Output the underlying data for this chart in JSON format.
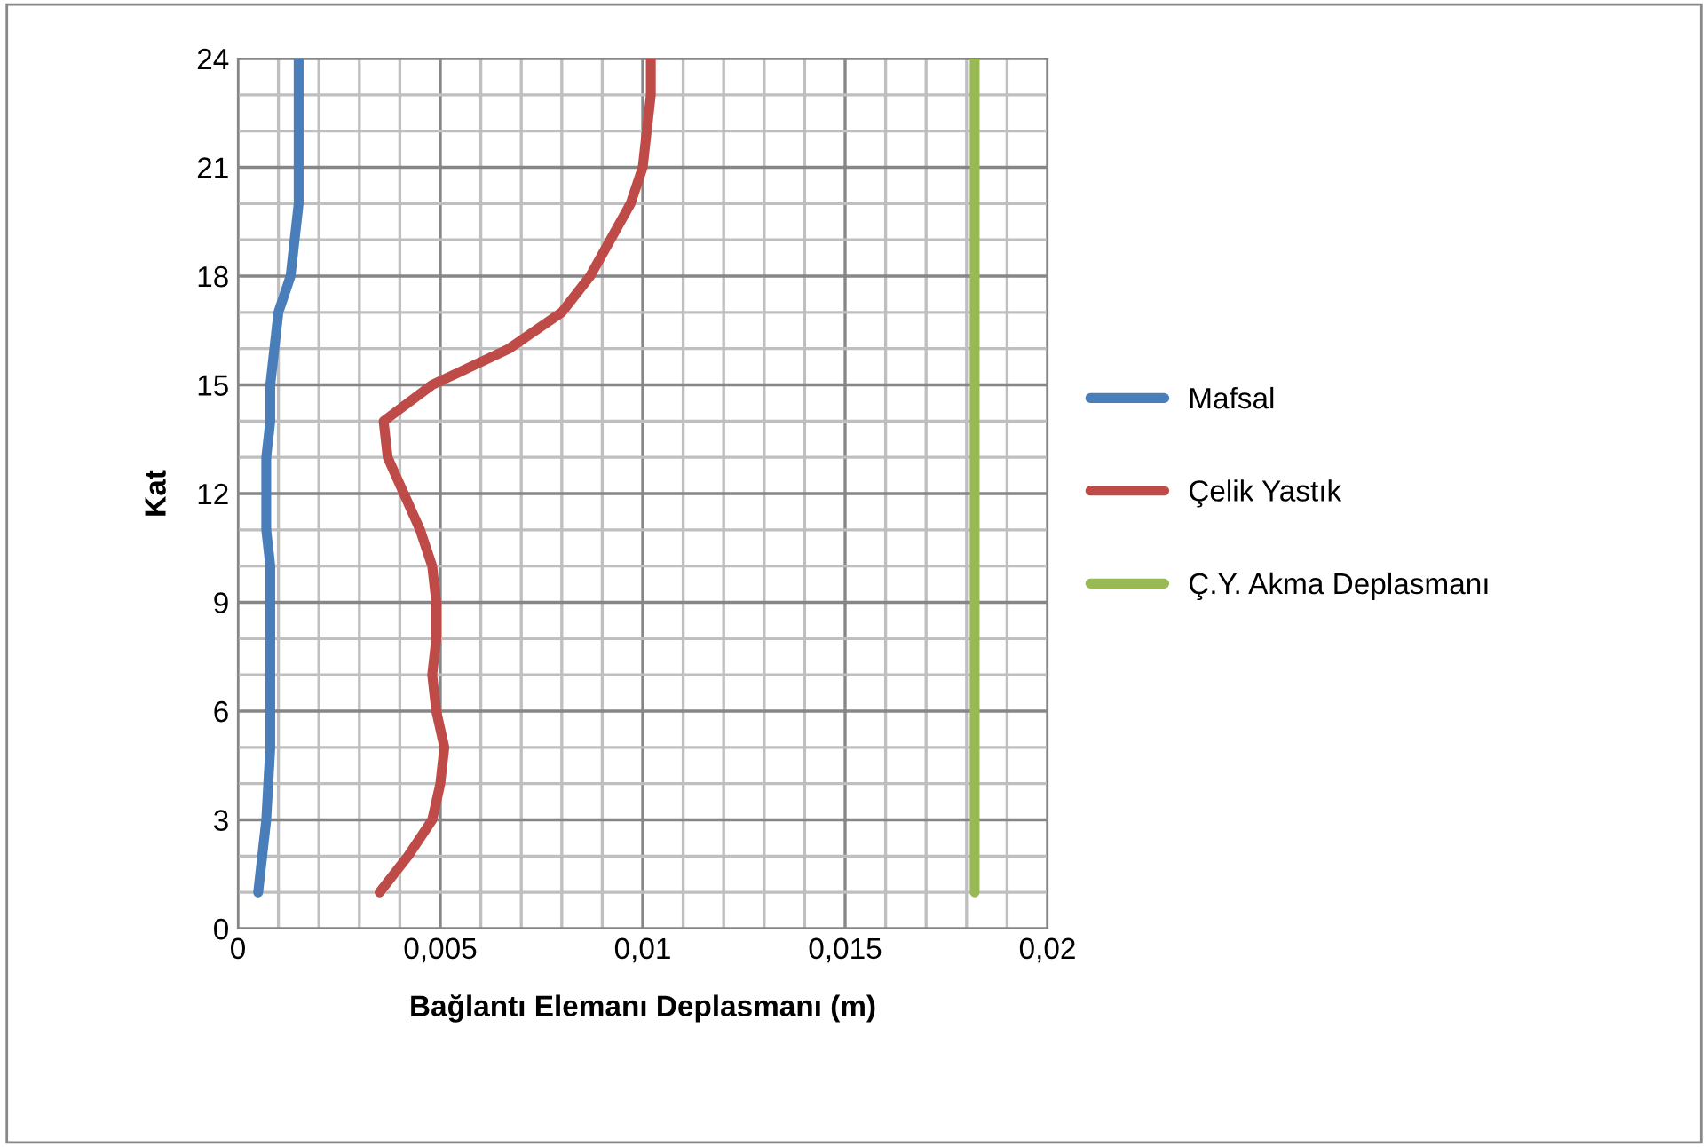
{
  "chart_data": {
    "type": "line",
    "xlabel": "Bağlantı Elemanı Deplasmanı (m)",
    "ylabel": "Kat",
    "series": [
      {
        "name": "Mafsal",
        "color": "#4a7ebb",
        "x": [
          0.0005,
          0.0006,
          0.0007,
          0.00075,
          0.0008,
          0.0008,
          0.0008,
          0.0008,
          0.0008,
          0.0008,
          0.0007,
          0.0007,
          0.0007,
          0.0008,
          0.0008,
          0.0009,
          0.001,
          0.0013,
          0.0014,
          0.0015,
          0.0015,
          0.0015,
          0.0015,
          0.0015
        ],
        "values": [
          1,
          2,
          3,
          4,
          5,
          6,
          7,
          8,
          9,
          10,
          11,
          12,
          13,
          14,
          15,
          16,
          17,
          18,
          19,
          20,
          21,
          22,
          23,
          24
        ]
      },
      {
        "name": "Çelik Yastık",
        "color": "#be4b48",
        "x": [
          0.0035,
          0.0042,
          0.0048,
          0.005,
          0.0051,
          0.0049,
          0.0048,
          0.0049,
          0.0049,
          0.0048,
          0.0045,
          0.0041,
          0.0037,
          0.0036,
          0.0048,
          0.0067,
          0.008,
          0.0087,
          0.0092,
          0.0097,
          0.01,
          0.0101,
          0.0102,
          0.0102
        ],
        "values": [
          1,
          2,
          3,
          4,
          5,
          6,
          7,
          8,
          9,
          10,
          11,
          12,
          13,
          14,
          15,
          16,
          17,
          18,
          19,
          20,
          21,
          22,
          23,
          24
        ]
      },
      {
        "name": "Ç.Y. Akma Deplasmanı",
        "color": "#98b954",
        "x": [
          0.0182,
          0.0182
        ],
        "values": [
          1,
          24
        ]
      }
    ],
    "xlim": [
      0,
      0.02
    ],
    "ylim": [
      0,
      24
    ],
    "xticks": [
      0,
      {
        "value": 0.001,
        "label": null
      },
      {
        "value": 0.002,
        "label": null
      },
      {
        "value": 0.003,
        "label": null
      },
      {
        "value": 0.004,
        "label": null
      },
      {
        "value": 0.005,
        "label": "0,005"
      },
      {
        "value": 0.006,
        "label": null
      },
      {
        "value": 0.007,
        "label": null
      },
      {
        "value": 0.008,
        "label": null
      },
      {
        "value": 0.009,
        "label": null
      },
      {
        "value": 0.01,
        "label": "0,01"
      },
      {
        "value": 0.011,
        "label": null
      },
      {
        "value": 0.012,
        "label": null
      },
      {
        "value": 0.013,
        "label": null
      },
      {
        "value": 0.014,
        "label": null
      },
      {
        "value": 0.015,
        "label": "0,015"
      },
      {
        "value": 0.016,
        "label": null
      },
      {
        "value": 0.017,
        "label": null
      },
      {
        "value": 0.018,
        "label": null
      },
      {
        "value": 0.019,
        "label": null
      },
      {
        "value": 0.02,
        "label": "0,02"
      }
    ],
    "yticks": [
      0,
      {
        "value": 1,
        "label": null
      },
      {
        "value": 2,
        "label": null
      },
      3,
      {
        "value": 4,
        "label": null
      },
      {
        "value": 5,
        "label": null
      },
      6,
      {
        "value": 7,
        "label": null
      },
      {
        "value": 8,
        "label": null
      },
      9,
      {
        "value": 10,
        "label": null
      },
      {
        "value": 11,
        "label": null
      },
      12,
      {
        "value": 13,
        "label": null
      },
      {
        "value": 14,
        "label": null
      },
      15,
      {
        "value": 16,
        "label": null
      },
      {
        "value": 17,
        "label": null
      },
      18,
      {
        "value": 19,
        "label": null
      },
      {
        "value": 20,
        "label": null
      },
      21,
      {
        "value": 22,
        "label": null
      },
      {
        "value": 23,
        "label": null
      },
      24
    ],
    "grid": true,
    "legend": "right",
    "marker": "none",
    "line_style": "solid"
  }
}
